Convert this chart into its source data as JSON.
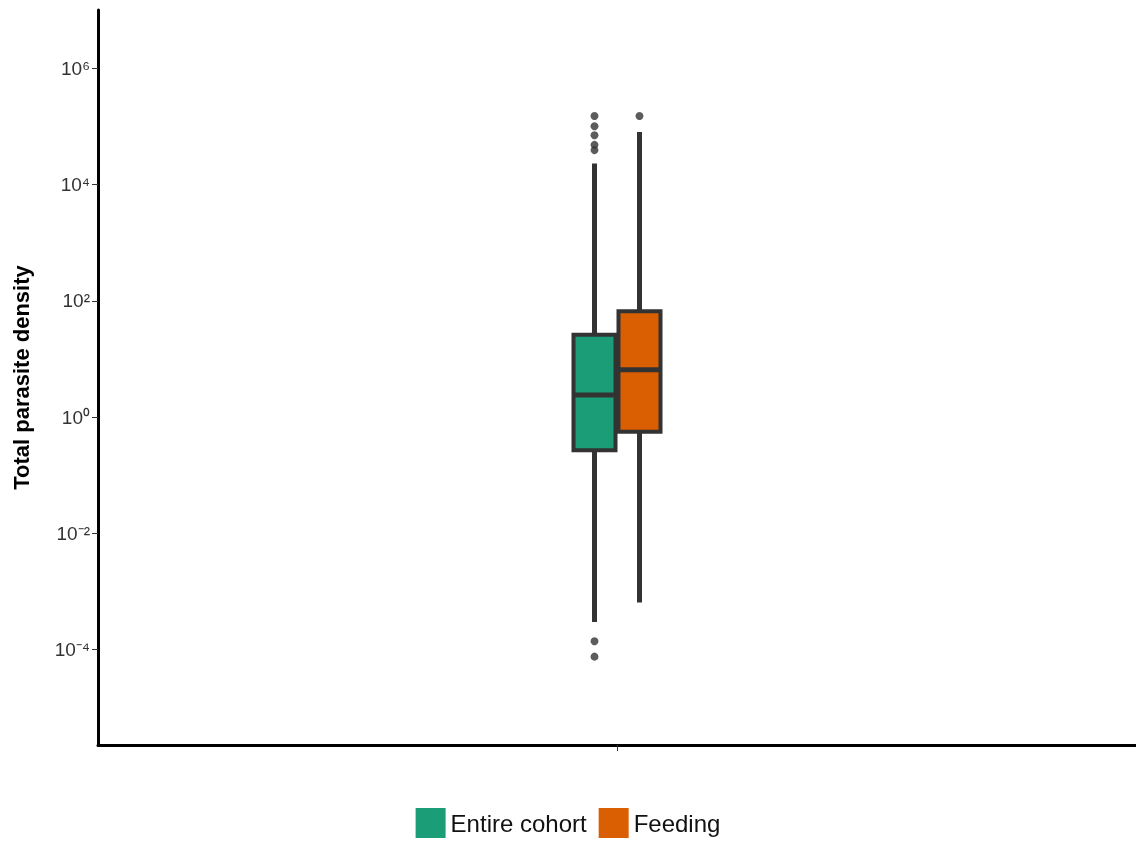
{
  "chart_data": {
    "type": "box",
    "categories": [
      null
    ],
    "ylabel": "Total parasite density",
    "log": true,
    "grid": false,
    "legend": "bottom",
    "tick_labels": "y",
    "ylim": [
      2.3e-06,
      10000000.0
    ],
    "yticks": [
      {
        "value": 0.0001,
        "label": "10⁻⁴"
      },
      {
        "value": 0.01,
        "label": "10⁻²"
      },
      {
        "value": 1,
        "label": "10⁰"
      },
      {
        "value": 100,
        "label": "10²"
      },
      {
        "value": 10000,
        "label": "10⁴"
      },
      {
        "value": 1000000,
        "label": "10⁶"
      }
    ],
    "series": [
      {
        "name": "Entire cohort",
        "color": "#1b9e77",
        "boxes": [
          {
            "low": 0.0003,
            "q1": 0.27,
            "median": 2.4,
            "q3": 26,
            "high": 23000,
            "outliers": [
              150000,
              100000,
              70000,
              48000,
              39000,
              0.00014,
              7.6e-05
            ]
          }
        ]
      },
      {
        "name": "Feeding",
        "color": "#d95f02",
        "boxes": [
          {
            "low": 0.00065,
            "q1": 0.56,
            "median": 6.5,
            "q3": 66,
            "high": 80000,
            "outliers": [
              150000
            ]
          }
        ]
      }
    ]
  }
}
